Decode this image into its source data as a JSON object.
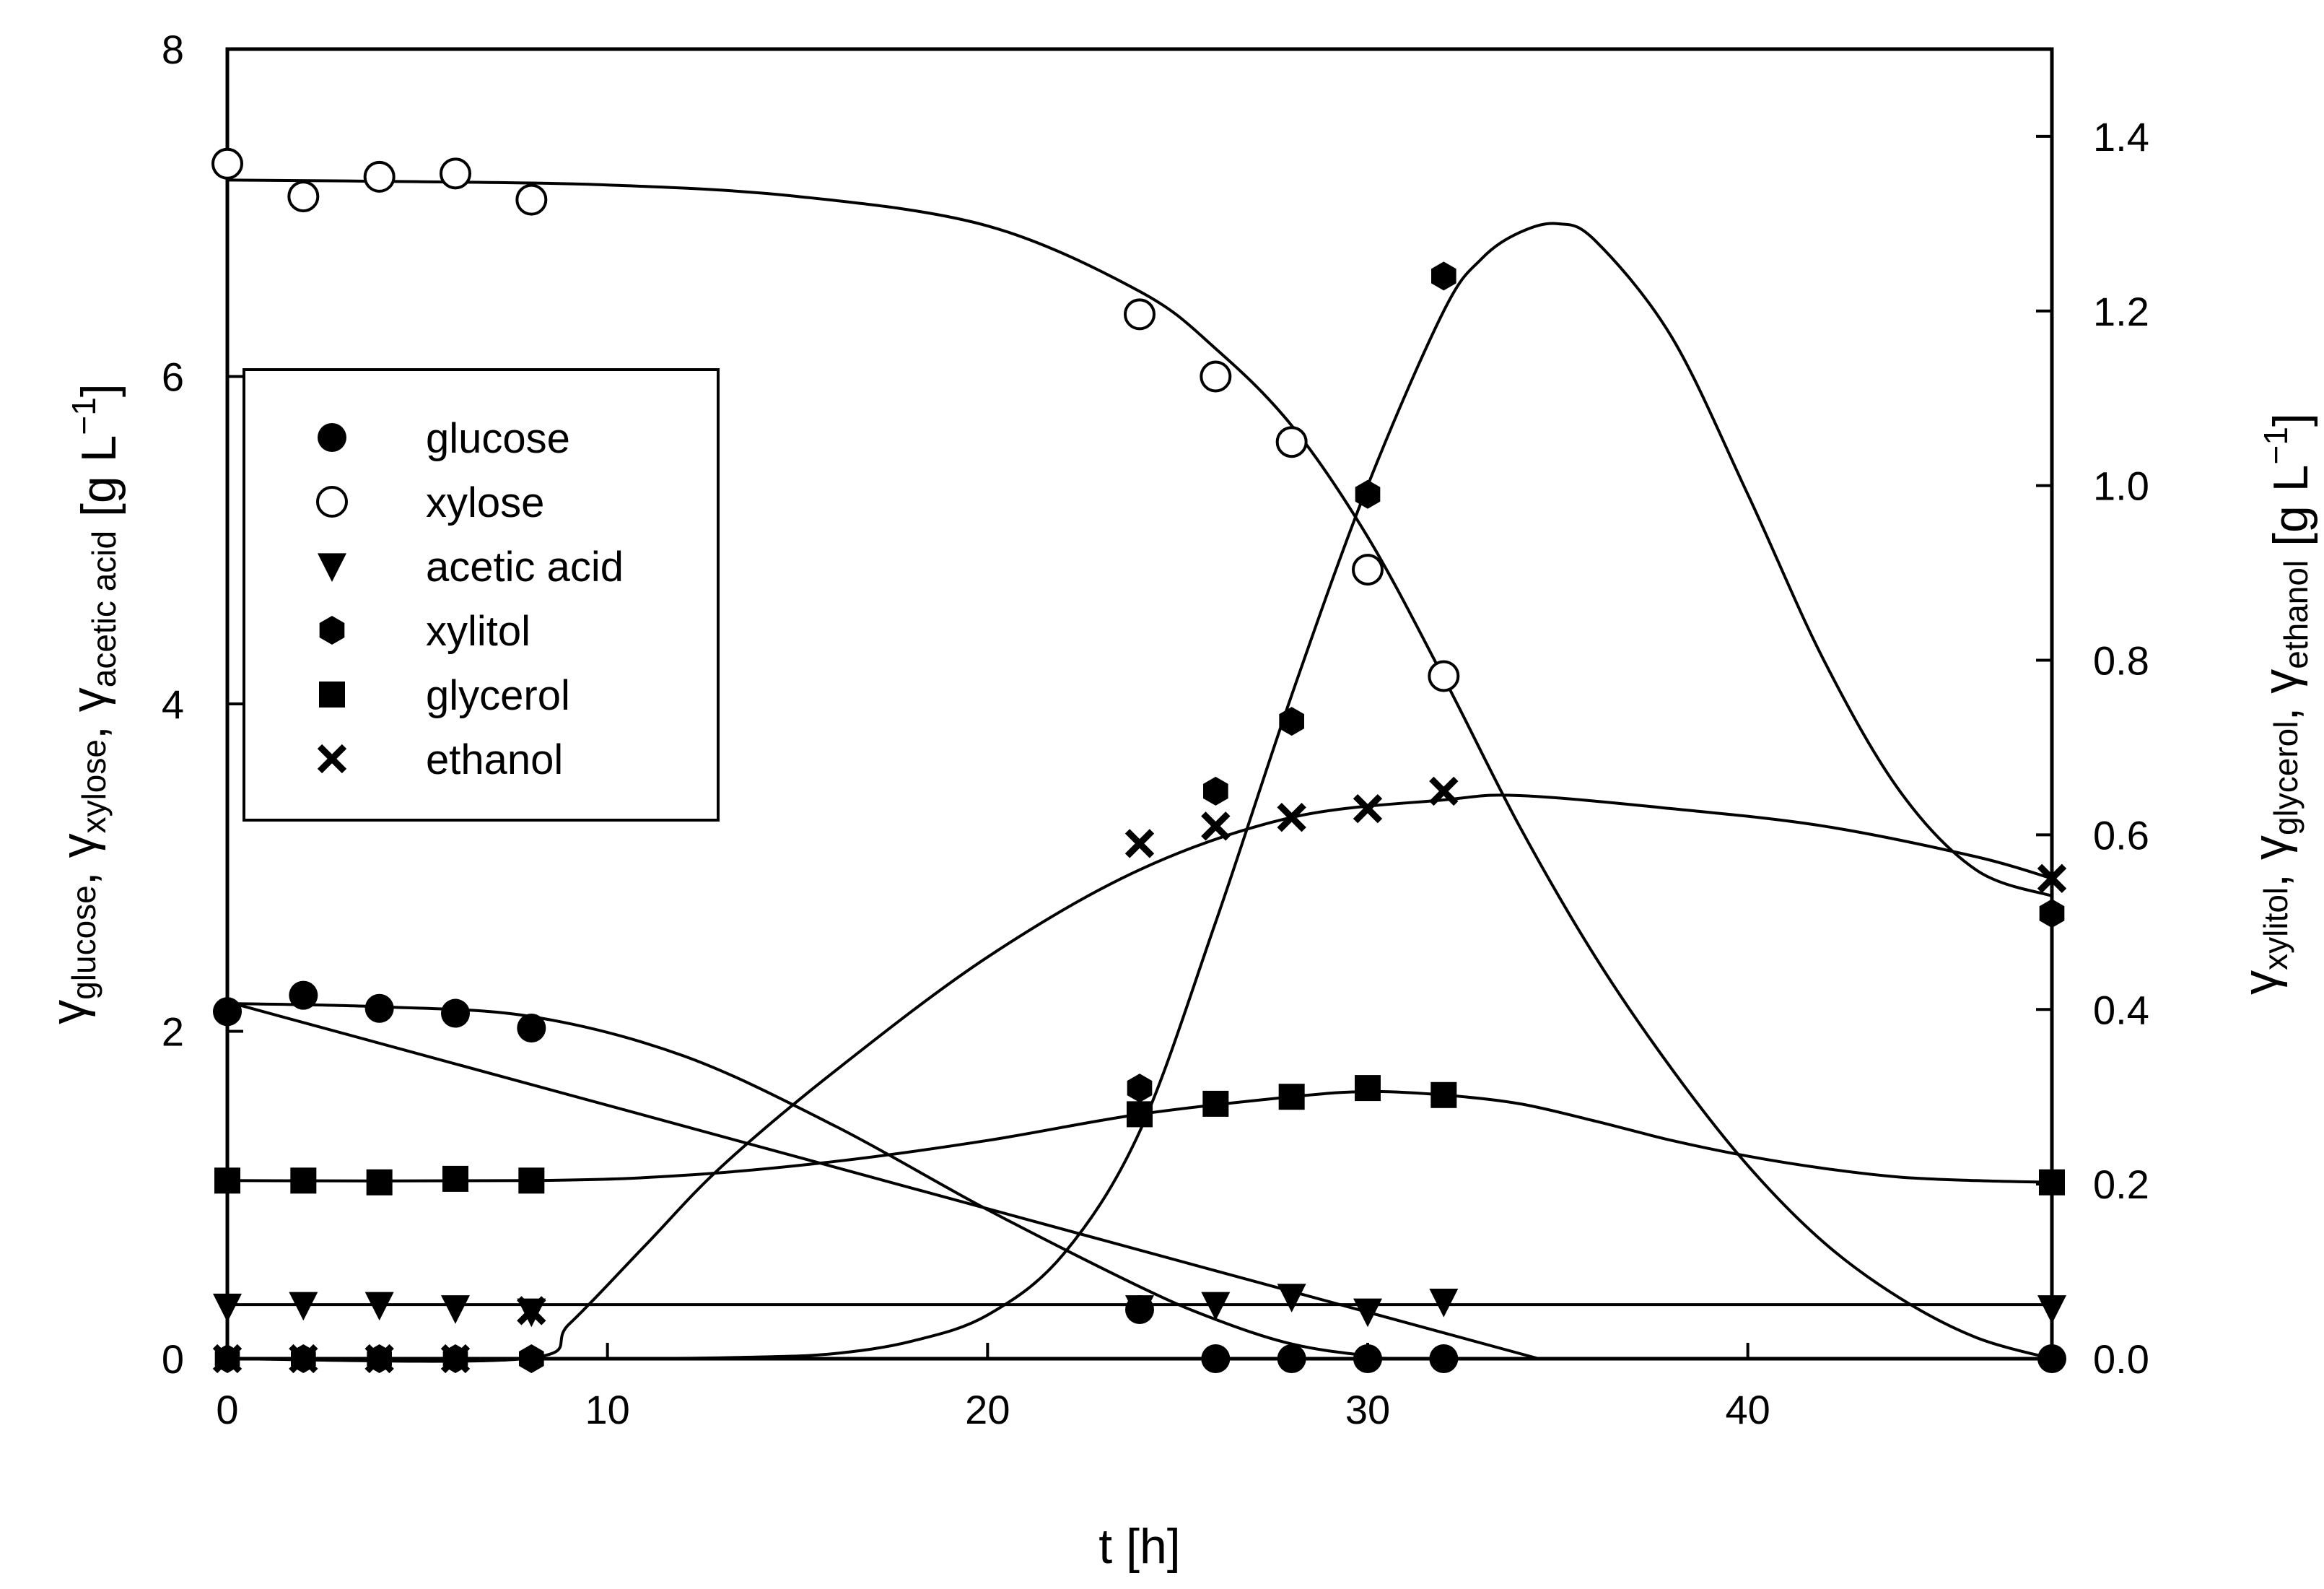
{
  "chart_data": {
    "type": "scatter",
    "xlabel": "t [h]",
    "left_axis": {
      "label_parts": [
        {
          "text": "γ",
          "sub": "glucose"
        },
        {
          "text": ", γ",
          "sub": "xylose"
        },
        {
          "text": ", γ",
          "sub": "acetic acid"
        }
      ],
      "unit": "[g L",
      "unit_sup": "−1",
      "unit_close": "]",
      "ylim": [
        0,
        8
      ],
      "ticks": [
        0,
        2,
        4,
        6,
        8
      ]
    },
    "right_axis": {
      "label_parts": [
        {
          "text": "γ",
          "sub": "xylitol"
        },
        {
          "text": ", γ",
          "sub": "glycerol"
        },
        {
          "text": ", γ",
          "sub": "ethanol"
        }
      ],
      "unit": "[g L",
      "unit_sup": "−1",
      "unit_close": "]",
      "ylim": [
        0,
        1.5
      ],
      "ticks": [
        "0.0",
        "0.2",
        "0.4",
        "0.6",
        "0.8",
        "1.0",
        "1.2",
        "1.4"
      ]
    },
    "xlim": [
      0,
      48
    ],
    "x_ticks": [
      0,
      10,
      20,
      30,
      40
    ],
    "series": [
      {
        "name": "glucose",
        "marker": "filled-circle",
        "axis": "left",
        "x": [
          0,
          2,
          4,
          6,
          8,
          24,
          26,
          28,
          30,
          32,
          48
        ],
        "y": [
          2.12,
          2.22,
          2.14,
          2.11,
          2.02,
          0.3,
          0.0,
          0.0,
          0.0,
          0.0,
          0.0
        ],
        "fit": [
          [
            0,
            2.17
          ],
          [
            4,
            2.15
          ],
          [
            8,
            2.09
          ],
          [
            12,
            1.85
          ],
          [
            16,
            1.42
          ],
          [
            20,
            0.91
          ],
          [
            24,
            0.44
          ],
          [
            26,
            0.24
          ],
          [
            28,
            0.09
          ],
          [
            30,
            0.02
          ],
          [
            32,
            0.0
          ],
          [
            48,
            0.0
          ]
        ]
      },
      {
        "name": "xylose",
        "marker": "open-circle",
        "axis": "left",
        "x": [
          0,
          2,
          4,
          6,
          8,
          24,
          26,
          28,
          30,
          32
        ],
        "y": [
          7.3,
          7.1,
          7.22,
          7.24,
          7.08,
          6.38,
          6.0,
          5.6,
          4.82,
          4.17
        ],
        "fit": [
          [
            0,
            7.2
          ],
          [
            5,
            7.19
          ],
          [
            10,
            7.17
          ],
          [
            15,
            7.1
          ],
          [
            20,
            6.92
          ],
          [
            24,
            6.52
          ],
          [
            26,
            6.17
          ],
          [
            28,
            5.7
          ],
          [
            30,
            5.02
          ],
          [
            32,
            4.16
          ],
          [
            34,
            3.25
          ],
          [
            36,
            2.45
          ],
          [
            38,
            1.77
          ],
          [
            40,
            1.18
          ],
          [
            42,
            0.71
          ],
          [
            44,
            0.37
          ],
          [
            46,
            0.13
          ],
          [
            48,
            0.0
          ]
        ]
      },
      {
        "name": "acetic acid",
        "marker": "filled-triangle-down",
        "axis": "left",
        "x": [
          0,
          2,
          4,
          6,
          8,
          24,
          26,
          28,
          30,
          32,
          48
        ],
        "y": [
          0.32,
          0.33,
          0.33,
          0.31,
          0.29,
          0.31,
          0.33,
          0.38,
          0.29,
          0.35,
          0.31
        ],
        "fit": [
          [
            0,
            0.33
          ],
          [
            48,
            0.33
          ]
        ],
        "fit2": [
          [
            0,
            2.18
          ],
          [
            34.5,
            0.0
          ]
        ]
      },
      {
        "name": "xylitol",
        "marker": "filled-hexagon",
        "axis": "right",
        "x": [
          0,
          2,
          4,
          6,
          8,
          24,
          26,
          28,
          30,
          32,
          48
        ],
        "y": [
          0.0,
          0.0,
          0.0,
          0.0,
          0.0,
          0.31,
          0.65,
          0.73,
          0.99,
          1.24,
          0.51
        ],
        "fit": [
          [
            0,
            0.0
          ],
          [
            10,
            0.0
          ],
          [
            14,
            0.002
          ],
          [
            16,
            0.006
          ],
          [
            18,
            0.02
          ],
          [
            20,
            0.05
          ],
          [
            22,
            0.12
          ],
          [
            24,
            0.26
          ],
          [
            26,
            0.5
          ],
          [
            28,
            0.76
          ],
          [
            30,
            1.0
          ],
          [
            32,
            1.2
          ],
          [
            33,
            1.26
          ],
          [
            34,
            1.29
          ],
          [
            35,
            1.3
          ],
          [
            36,
            1.28
          ],
          [
            38,
            1.17
          ],
          [
            40,
            0.99
          ],
          [
            42,
            0.8
          ],
          [
            44,
            0.65
          ],
          [
            46,
            0.56
          ],
          [
            48,
            0.53
          ]
        ]
      },
      {
        "name": "glycerol",
        "marker": "filled-square",
        "axis": "right",
        "x": [
          0,
          2,
          4,
          6,
          8,
          24,
          26,
          28,
          30,
          32,
          48
        ],
        "y": [
          0.204,
          0.204,
          0.202,
          0.206,
          0.204,
          0.28,
          0.292,
          0.3,
          0.31,
          0.302,
          0.202
        ],
        "fit": [
          [
            0,
            0.204
          ],
          [
            8,
            0.204
          ],
          [
            12,
            0.21
          ],
          [
            16,
            0.226
          ],
          [
            20,
            0.25
          ],
          [
            24,
            0.28
          ],
          [
            28,
            0.3
          ],
          [
            30,
            0.306
          ],
          [
            32,
            0.302
          ],
          [
            34,
            0.292
          ],
          [
            36,
            0.272
          ],
          [
            38,
            0.25
          ],
          [
            40,
            0.232
          ],
          [
            42,
            0.218
          ],
          [
            44,
            0.208
          ],
          [
            46,
            0.204
          ],
          [
            48,
            0.202
          ]
        ]
      },
      {
        "name": "ethanol",
        "marker": "x-cross",
        "axis": "right",
        "x": [
          0,
          2,
          4,
          6,
          8,
          24,
          26,
          28,
          30,
          32,
          48
        ],
        "y": [
          0.0,
          0.0,
          0.0,
          0.0,
          0.055,
          0.59,
          0.61,
          0.62,
          0.63,
          0.65,
          0.55
        ],
        "fit": [
          [
            0,
            0.0
          ],
          [
            7.8,
            0.0
          ],
          [
            9,
            0.04
          ],
          [
            11,
            0.13
          ],
          [
            13,
            0.22
          ],
          [
            16,
            0.33
          ],
          [
            20,
            0.46
          ],
          [
            24,
            0.56
          ],
          [
            28,
            0.62
          ],
          [
            32,
            0.64
          ],
          [
            34,
            0.645
          ],
          [
            38,
            0.63
          ],
          [
            42,
            0.61
          ],
          [
            46,
            0.575
          ],
          [
            48,
            0.55
          ]
        ]
      }
    ],
    "legend": {
      "placement": "upper-left",
      "entries": [
        "glucose",
        "xylose",
        "acetic acid",
        "xylitol",
        "glycerol",
        "ethanol"
      ]
    },
    "grid": false
  }
}
